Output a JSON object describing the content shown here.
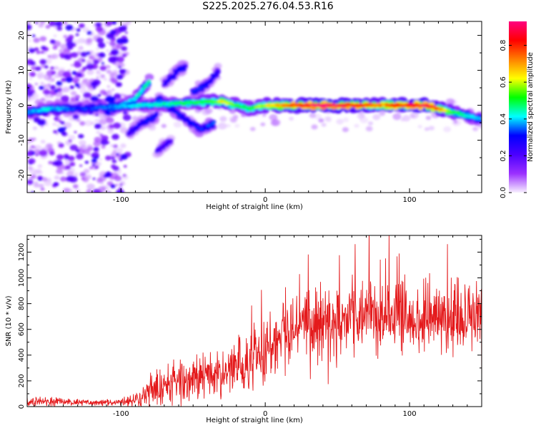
{
  "title": "S225.2025.276.04.53.R16",
  "chart_data": [
    {
      "type": "heatmap",
      "xlabel": "Height of straight line (km)",
      "ylabel": "Frequency (Hz)",
      "xlim": [
        -165,
        150
      ],
      "ylim": [
        -25,
        24
      ],
      "xticks": [
        -100,
        0,
        100
      ],
      "yticks": [
        -20,
        -10,
        0,
        10,
        20
      ],
      "colorbar": {
        "label": "Normalized spectral amplitude",
        "range": [
          0,
          0.93
        ],
        "ticks": [
          0.0,
          0.2,
          0.4,
          0.6,
          0.8
        ],
        "colors": [
          "#f8f0ff",
          "#9b30ff",
          "#4b00ff",
          "#0000ff",
          "#00ffff",
          "#00ff00",
          "#ffff00",
          "#ff8000",
          "#ff0000",
          "#ff0080"
        ]
      },
      "ridges": [
        {
          "name": "main-echo",
          "points": [
            [
              -165,
              -2
            ],
            [
              -150,
              -1
            ],
            [
              -140,
              -1
            ],
            [
              -130,
              -1
            ],
            [
              -40,
              1
            ],
            [
              -30,
              1
            ],
            [
              -20,
              0
            ],
            [
              -10,
              -1
            ],
            [
              0,
              0
            ],
            [
              20,
              0
            ],
            [
              40,
              0
            ],
            [
              60,
              0
            ],
            [
              80,
              0
            ],
            [
              100,
              0
            ],
            [
              110,
              0
            ],
            [
              120,
              -1
            ],
            [
              130,
              -2
            ],
            [
              140,
              -3
            ],
            [
              150,
              -4
            ]
          ],
          "amp": [
            0.35,
            0.4,
            0.35,
            0.3,
            0.5,
            0.6,
            0.5,
            0.5,
            0.6,
            0.75,
            0.88,
            0.8,
            0.7,
            0.78,
            0.85,
            0.7,
            0.5,
            0.4,
            0.35
          ]
        },
        {
          "name": "branch-1",
          "points": [
            [
              -110,
              -2
            ],
            [
              -100,
              0
            ],
            [
              -90,
              2
            ],
            [
              -80,
              7
            ]
          ],
          "amp": [
            0.3,
            0.35,
            0.4,
            0.45
          ]
        },
        {
          "name": "branch-2",
          "points": [
            [
              -75,
              2
            ],
            [
              -65,
              -1
            ],
            [
              -55,
              -4
            ],
            [
              -45,
              -7
            ],
            [
              -35,
              -5
            ]
          ],
          "amp": [
            0.3,
            0.3,
            0.28,
            0.3,
            0.35
          ]
        },
        {
          "name": "branch-3",
          "points": [
            [
              -70,
              6
            ],
            [
              -60,
              10
            ],
            [
              -55,
              11
            ]
          ],
          "amp": [
            0.25,
            0.28,
            0.28
          ]
        },
        {
          "name": "branch-4",
          "points": [
            [
              -95,
              -8
            ],
            [
              -85,
              -5
            ],
            [
              -75,
              -3
            ]
          ],
          "amp": [
            0.22,
            0.28,
            0.3
          ]
        },
        {
          "name": "branch-5",
          "points": [
            [
              -75,
              -13
            ],
            [
              -65,
              -10
            ]
          ],
          "amp": [
            0.22,
            0.22
          ]
        },
        {
          "name": "branch-6",
          "points": [
            [
              -50,
              4
            ],
            [
              -40,
              6
            ],
            [
              -32,
              10
            ]
          ],
          "amp": [
            0.3,
            0.3,
            0.25
          ]
        }
      ]
    },
    {
      "type": "line",
      "xlabel": "Height of straight line (km)",
      "ylabel": "SNR (10 * v/v)",
      "xlim": [
        -165,
        150
      ],
      "ylim": [
        0,
        1330
      ],
      "xticks": [
        -100,
        0,
        100
      ],
      "yticks": [
        0,
        200,
        400,
        600,
        800,
        1000,
        1200
      ],
      "color": "#e41a1c",
      "envelope": {
        "x": [
          -165,
          -140,
          -110,
          -100,
          -90,
          -80,
          -75,
          -70,
          -60,
          -50,
          -40,
          -30,
          -20,
          -10,
          0,
          10,
          20,
          30,
          50,
          70,
          90,
          110,
          130,
          150
        ],
        "base": [
          40,
          35,
          30,
          35,
          60,
          110,
          150,
          170,
          190,
          200,
          230,
          250,
          300,
          380,
          430,
          550,
          620,
          650,
          690,
          720,
          700,
          720,
          690,
          680
        ],
        "spread": [
          40,
          30,
          25,
          30,
          60,
          120,
          170,
          180,
          180,
          170,
          180,
          190,
          210,
          250,
          240,
          220,
          240,
          260,
          280,
          300,
          280,
          280,
          300,
          280
        ]
      }
    }
  ]
}
